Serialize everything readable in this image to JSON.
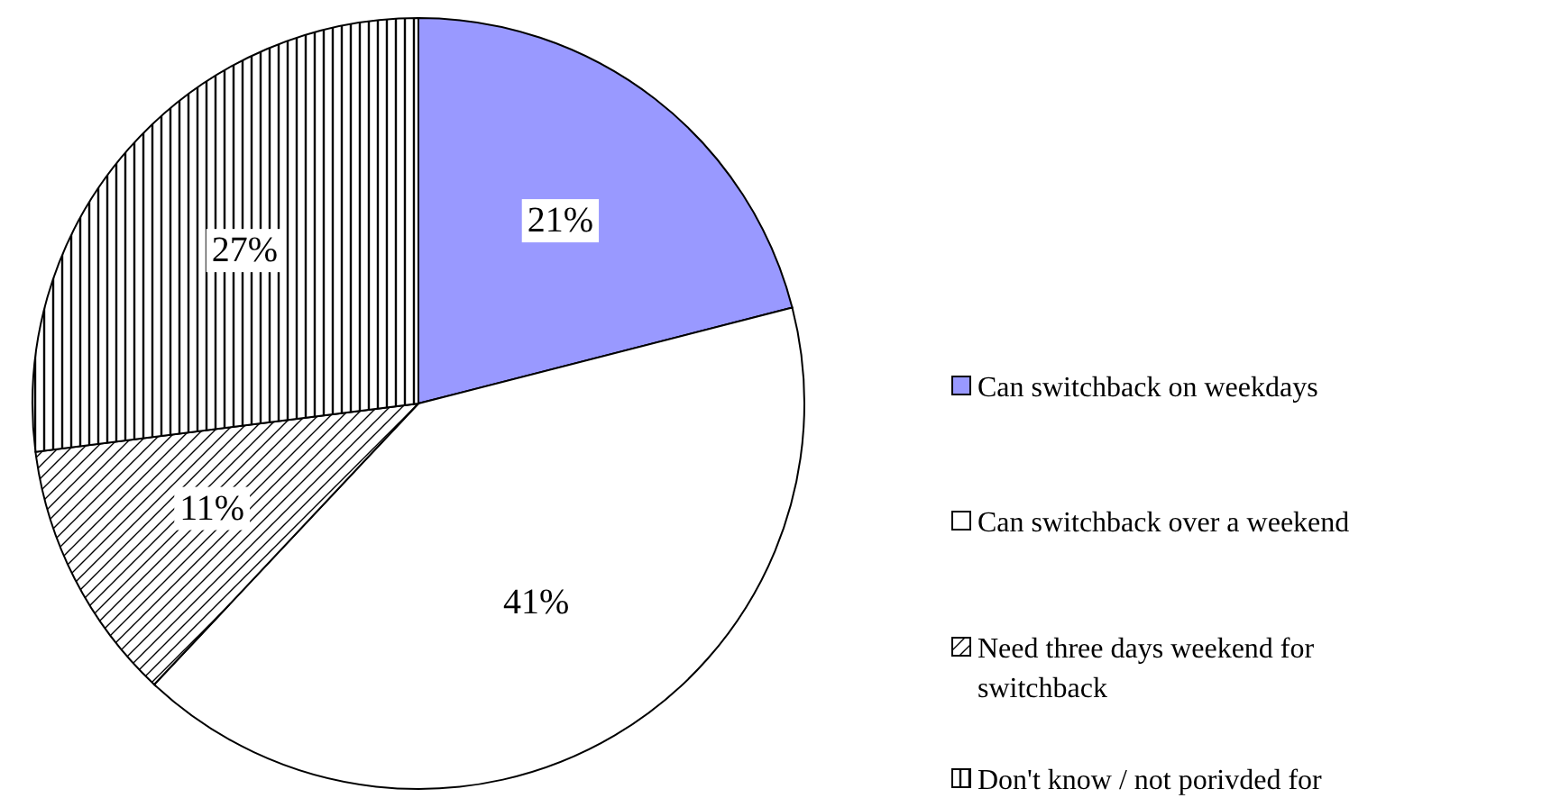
{
  "chart_data": {
    "type": "pie",
    "categories": [
      "Can switchback on weekdays",
      "Can switchback over a weekend",
      "Need three days weekend for switchback",
      "Don't know / not porivded for"
    ],
    "values": [
      21,
      41,
      11,
      27
    ],
    "colors": [
      "#9999ff",
      "#ffffff",
      "#000000",
      "#000000"
    ],
    "value_labels": [
      "21%",
      "41%",
      "11%",
      "27%"
    ],
    "legend": "right"
  }
}
